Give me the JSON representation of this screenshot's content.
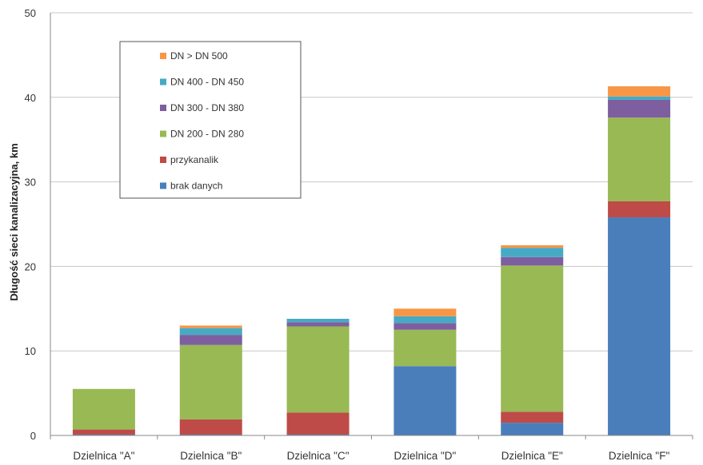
{
  "chart_data": {
    "type": "bar",
    "stacked": true,
    "ylabel": "Długość sieci kanalizacyjna, km",
    "xlabel": "",
    "ylim": [
      0,
      50
    ],
    "yticks": [
      0,
      10,
      20,
      30,
      40,
      50
    ],
    "grid": true,
    "legend_position": "top-left",
    "categories": [
      "Dzielnica \"A\"",
      "Dzielnica \"B\"",
      "Dzielnica \"C\"",
      "Dzielnica \"D\"",
      "Dzielnica \"E\"",
      "Dzielnica \"F\""
    ],
    "series": [
      {
        "name": "brak danych",
        "color": "#4a7ebb",
        "values": [
          0.1,
          0.1,
          0.1,
          8.2,
          1.5,
          25.8
        ]
      },
      {
        "name": "przykanalik",
        "color": "#be4b48",
        "values": [
          0.6,
          1.8,
          2.6,
          0.0,
          1.3,
          1.9
        ]
      },
      {
        "name": "DN 200 - DN 280",
        "color": "#98b954",
        "values": [
          4.8,
          8.8,
          10.2,
          4.3,
          17.3,
          9.9
        ]
      },
      {
        "name": "DN 300 - DN 380",
        "color": "#7d5fa0",
        "values": [
          0.0,
          1.2,
          0.5,
          0.8,
          1.0,
          2.1
        ]
      },
      {
        "name": "DN 400 - DN 450",
        "color": "#46aac5",
        "values": [
          0.0,
          0.8,
          0.4,
          0.8,
          1.1,
          0.4
        ]
      },
      {
        "name": "DN > DN 500",
        "color": "#f79646",
        "values": [
          0.0,
          0.3,
          0.0,
          0.9,
          0.3,
          1.2
        ]
      }
    ]
  }
}
